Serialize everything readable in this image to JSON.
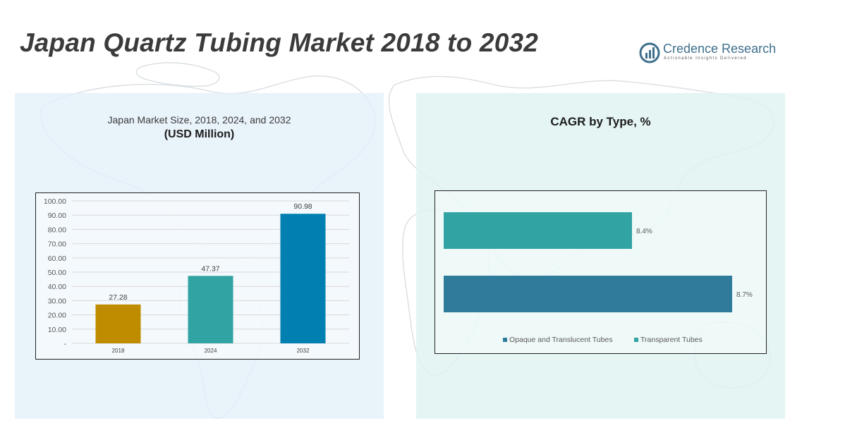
{
  "title": "Japan Quartz Tubing Market 2018 to 2032",
  "logo": {
    "name_part1": "Credence",
    "name_part2": " Research",
    "tagline": "Actionable Insights Delivered"
  },
  "chart_data": [
    {
      "type": "bar",
      "title": "Japan Market Size, 2018, 2024, and 2032",
      "subtitle": "(USD Million)",
      "categories": [
        "2018",
        "2024",
        "2032"
      ],
      "values": [
        27.28,
        47.37,
        90.98
      ],
      "value_labels": [
        "27.28",
        "47.37",
        "90.98"
      ],
      "colors": [
        "#bf8c00",
        "#32a3a3",
        "#0080b0"
      ],
      "ylim": [
        0,
        100
      ],
      "yticks": [
        0,
        10,
        20,
        30,
        40,
        50,
        60,
        70,
        80,
        90,
        100
      ],
      "ytick_labels": [
        "-",
        "10.00",
        "20.00",
        "30.00",
        "40.00",
        "50.00",
        "60.00",
        "70.00",
        "80.00",
        "90.00",
        "100.00"
      ],
      "grid": true,
      "xlabel": "",
      "ylabel": ""
    },
    {
      "type": "bar",
      "orientation": "horizontal",
      "title": "CAGR by Type, %",
      "categories": [
        "Transparent Tubes",
        "Opaque and Translucent Tubes"
      ],
      "values": [
        8.4,
        8.7
      ],
      "value_labels": [
        "8.4%",
        "8.7%"
      ],
      "colors": [
        "#32a3a3",
        "#2f7b9b"
      ],
      "legend": {
        "position": "bottom",
        "entries": [
          {
            "name": "Opaque and Translucent Tubes",
            "color": "#2f7b9b"
          },
          {
            "name": "Transparent Tubes",
            "color": "#32a3a3"
          }
        ]
      }
    }
  ]
}
